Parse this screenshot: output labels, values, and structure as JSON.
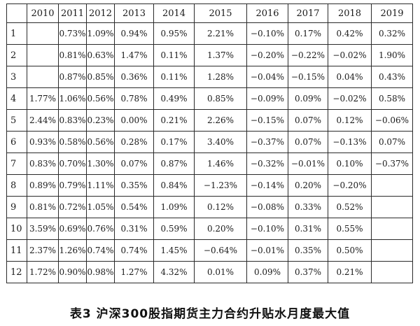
{
  "table": {
    "corner": "",
    "years": [
      "2010",
      "2011",
      "2012",
      "2013",
      "2014",
      "2015",
      "2016",
      "2017",
      "2018",
      "2019"
    ],
    "rows": [
      {
        "month": "1",
        "values": [
          "",
          "0.73%",
          "1.09%",
          "0.94%",
          "0.95%",
          "2.21%",
          "−0.10%",
          "0.17%",
          "0.42%",
          "0.32%"
        ]
      },
      {
        "month": "2",
        "values": [
          "",
          "0.81%",
          "0.63%",
          "1.47%",
          "0.11%",
          "1.37%",
          "−0.20%",
          "−0.22%",
          "−0.02%",
          "1.90%"
        ]
      },
      {
        "month": "3",
        "values": [
          "",
          "0.87%",
          "0.85%",
          "0.36%",
          "0.11%",
          "1.28%",
          "−0.04%",
          "−0.15%",
          "0.04%",
          "0.43%"
        ]
      },
      {
        "month": "4",
        "values": [
          "1.77%",
          "1.06%",
          "0.56%",
          "0.78%",
          "0.49%",
          "0.85%",
          "−0.09%",
          "0.09%",
          "−0.02%",
          "0.58%"
        ]
      },
      {
        "month": "5",
        "values": [
          "2.44%",
          "0.83%",
          "0.23%",
          "0.00%",
          "0.21%",
          "2.26%",
          "−0.15%",
          "0.07%",
          "0.12%",
          "−0.06%"
        ]
      },
      {
        "month": "6",
        "values": [
          "0.93%",
          "0.58%",
          "0.56%",
          "0.28%",
          "0.17%",
          "3.40%",
          "−0.37%",
          "0.07%",
          "−0.13%",
          "0.07%"
        ]
      },
      {
        "month": "7",
        "values": [
          "0.83%",
          "0.70%",
          "1.30%",
          "0.07%",
          "0.87%",
          "1.46%",
          "−0.32%",
          "−0.01%",
          "0.10%",
          "−0.37%"
        ]
      },
      {
        "month": "8",
        "values": [
          "0.89%",
          "0.79%",
          "1.11%",
          "0.35%",
          "0.84%",
          "−1.23%",
          "−0.14%",
          "0.20%",
          "−0.20%",
          ""
        ]
      },
      {
        "month": "9",
        "values": [
          "0.81%",
          "0.72%",
          "1.05%",
          "0.54%",
          "1.09%",
          "0.12%",
          "−0.08%",
          "0.33%",
          "0.52%",
          ""
        ]
      },
      {
        "month": "10",
        "values": [
          "3.59%",
          "0.69%",
          "0.76%",
          "0.31%",
          "0.59%",
          "0.20%",
          "−0.10%",
          "0.31%",
          "0.55%",
          ""
        ]
      },
      {
        "month": "11",
        "values": [
          "2.37%",
          "1.26%",
          "0.74%",
          "0.74%",
          "1.45%",
          "−0.64%",
          "−0.01%",
          "0.35%",
          "0.50%",
          ""
        ]
      },
      {
        "month": "12",
        "values": [
          "1.72%",
          "0.90%",
          "0.98%",
          "1.27%",
          "4.32%",
          "0.01%",
          "0.09%",
          "0.37%",
          "0.21%",
          ""
        ]
      }
    ]
  },
  "caption": "表3  沪深300股指期货主力合约升贴水月度最大值"
}
